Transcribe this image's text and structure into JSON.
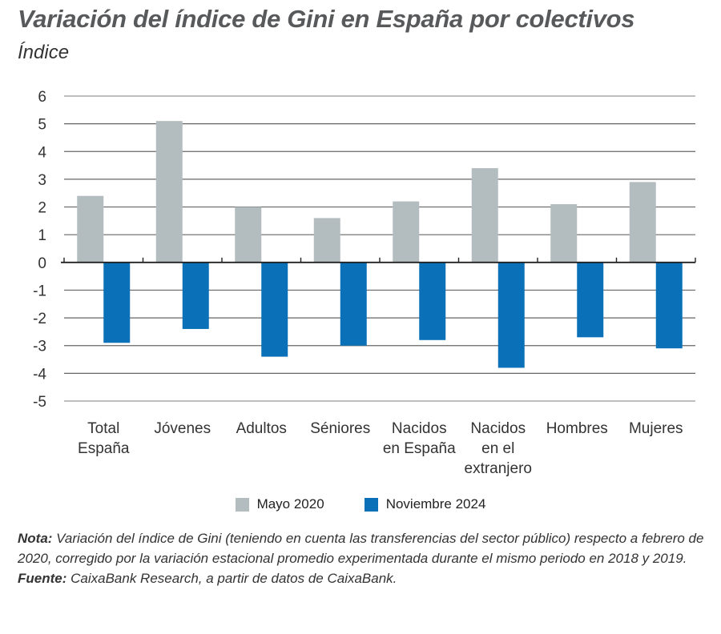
{
  "title": "Variación del índice de Gini en España por colectivos",
  "subtitle": "Índice",
  "colors": {
    "Mayo 2020": "#b3bcbf",
    "Noviembre 2024": "#0a71b8"
  },
  "chart_data": {
    "type": "bar",
    "categories": [
      [
        "Total",
        "España"
      ],
      [
        "Jóvenes"
      ],
      [
        "Adultos"
      ],
      [
        "Séniores"
      ],
      [
        "Nacidos",
        "en España"
      ],
      [
        "Nacidos",
        "en el",
        "extranjero"
      ],
      [
        "Hombres"
      ],
      [
        "Mujeres"
      ]
    ],
    "series": [
      {
        "name": "Mayo 2020",
        "values": [
          2.4,
          5.1,
          2.0,
          1.6,
          2.2,
          3.4,
          2.1,
          2.9
        ]
      },
      {
        "name": "Noviembre 2024",
        "values": [
          -2.9,
          -2.4,
          -3.4,
          -3.0,
          -2.8,
          -3.8,
          -2.7,
          -3.1
        ]
      }
    ],
    "ylim": [
      -5,
      6
    ],
    "yticks": [
      "6",
      "5",
      "4",
      "3",
      "2",
      "1",
      "0",
      "-1",
      "-2",
      "-3",
      "-4",
      "-5"
    ],
    "grid": true,
    "legend": "bottom"
  },
  "notes": {
    "nota_label": "Nota:",
    "nota_text": " Variación del índice de Gini (teniendo en cuenta las transferencias del sector público) respecto a febrero de 2020, corregido por la variación estacional promedio experimentada durante el mismo periodo en 2018 y 2019.",
    "fuente_label": "Fuente:",
    "fuente_text": " CaixaBank Research, a partir de datos de CaixaBank."
  }
}
